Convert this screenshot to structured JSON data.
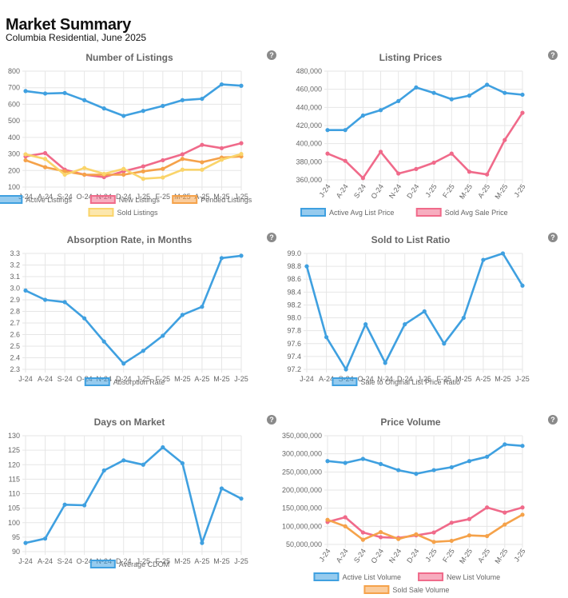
{
  "header": {
    "title": "Market Summary",
    "subtitle": "Columbia Residential, June 2025"
  },
  "help_icon": "?",
  "colors": {
    "blue": "#3fa0e0",
    "pink": "#f06a8a",
    "orange": "#f5a24a",
    "yellow": "#fad46a"
  },
  "chart_data": [
    {
      "type": "line",
      "title": "Number of Listings",
      "categories": [
        "J-24",
        "A-24",
        "S-24",
        "O-24",
        "N-24",
        "D-24",
        "J-25",
        "F-25",
        "M-25",
        "A-25",
        "M-25",
        "J-25"
      ],
      "ylim": [
        100,
        800
      ],
      "yticks": [
        "100",
        "200",
        "300",
        "400",
        "500",
        "600",
        "700",
        "800"
      ],
      "legend_rows": [
        [
          0,
          1,
          2
        ],
        [
          3
        ]
      ],
      "series": [
        {
          "name": "Active Listings",
          "color": "#3fa0e0",
          "values": [
            680,
            665,
            668,
            625,
            575,
            530,
            560,
            590,
            625,
            633,
            720,
            712
          ]
        },
        {
          "name": "New Listings",
          "color": "#f06a8a",
          "values": [
            285,
            305,
            205,
            175,
            160,
            195,
            225,
            262,
            298,
            355,
            335,
            365
          ]
        },
        {
          "name": "Pended Listings",
          "color": "#f5a24a",
          "values": [
            262,
            220,
            195,
            175,
            175,
            175,
            195,
            210,
            270,
            250,
            278,
            285
          ]
        },
        {
          "name": "Sold Listings",
          "color": "#fad46a",
          "values": [
            298,
            270,
            175,
            215,
            180,
            210,
            150,
            158,
            205,
            205,
            265,
            300
          ]
        }
      ]
    },
    {
      "type": "line",
      "title": "Listing Prices",
      "categories": [
        "J-24",
        "A-24",
        "S-24",
        "O-24",
        "N-24",
        "D-24",
        "J-25",
        "F-25",
        "M-25",
        "A-25",
        "M-25",
        "J-25"
      ],
      "ylim": [
        360000,
        480000
      ],
      "yticks": [
        "360,000",
        "380,000",
        "400,000",
        "420,000",
        "440,000",
        "460,000",
        "480,000"
      ],
      "rotate_x": true,
      "legend_rows": [
        [
          0,
          1
        ]
      ],
      "series": [
        {
          "name": "Active Avg List Price",
          "color": "#3fa0e0",
          "values": [
            415000,
            415000,
            431000,
            437000,
            447000,
            462000,
            456000,
            449000,
            453000,
            465000,
            456000,
            454000
          ]
        },
        {
          "name": "Sold Avg Sale Price",
          "color": "#f06a8a",
          "values": [
            389000,
            381000,
            362000,
            391000,
            367000,
            372000,
            379000,
            389000,
            369000,
            366000,
            404000,
            434000
          ]
        }
      ]
    },
    {
      "type": "line",
      "title": "Absorption Rate, in Months",
      "categories": [
        "J-24",
        "A-24",
        "S-24",
        "O-24",
        "N-24",
        "D-24",
        "J-25",
        "F-25",
        "M-25",
        "A-25",
        "M-25",
        "J-25"
      ],
      "ylim": [
        2.3,
        3.3
      ],
      "yticks": [
        "2.3",
        "2.4",
        "2.5",
        "2.6",
        "2.7",
        "2.8",
        "2.9",
        "3.0",
        "3.1",
        "3.2",
        "3.3"
      ],
      "legend_rows": [
        [
          0
        ]
      ],
      "series": [
        {
          "name": "Absorption Rate",
          "color": "#3fa0e0",
          "values": [
            2.98,
            2.9,
            2.88,
            2.74,
            2.54,
            2.35,
            2.46,
            2.59,
            2.77,
            2.84,
            3.26,
            3.28
          ]
        }
      ]
    },
    {
      "type": "line",
      "title": "Sold to List Ratio",
      "categories": [
        "J-24",
        "A-24",
        "S-24",
        "O-24",
        "N-24",
        "D-24",
        "J-25",
        "F-25",
        "M-25",
        "A-25",
        "M-25",
        "J-25"
      ],
      "ylim": [
        97.2,
        99.0
      ],
      "yticks": [
        "97.2",
        "97.4",
        "97.6",
        "97.8",
        "98.0",
        "98.2",
        "98.4",
        "98.6",
        "98.8",
        "99.0"
      ],
      "legend_rows": [
        [
          0
        ]
      ],
      "series": [
        {
          "name": "Sale to Original List Price Ratio",
          "color": "#3fa0e0",
          "values": [
            98.8,
            97.7,
            97.2,
            97.9,
            97.3,
            97.9,
            98.1,
            97.6,
            98.0,
            98.9,
            99.0,
            98.5
          ]
        }
      ]
    },
    {
      "type": "line",
      "title": "Days on Market",
      "categories": [
        "J-24",
        "A-24",
        "S-24",
        "O-24",
        "N-24",
        "D-24",
        "J-25",
        "F-25",
        "M-25",
        "A-25",
        "M-25",
        "J-25"
      ],
      "ylim": [
        90,
        130
      ],
      "yticks": [
        "90",
        "95",
        "100",
        "105",
        "110",
        "115",
        "120",
        "125",
        "130"
      ],
      "legend_rows": [
        [
          0
        ]
      ],
      "series": [
        {
          "name": "Average CDOM",
          "color": "#3fa0e0",
          "values": [
            93,
            94.5,
            106.2,
            106,
            118,
            121.5,
            120,
            126,
            120.5,
            93,
            111.8,
            108.3
          ]
        }
      ]
    },
    {
      "type": "line",
      "title": "Price Volume",
      "categories": [
        "J-24",
        "A-24",
        "S-24",
        "O-24",
        "N-24",
        "D-24",
        "J-25",
        "F-25",
        "M-25",
        "A-25",
        "M-25",
        "J-25"
      ],
      "ylim": [
        50000000,
        350000000
      ],
      "yticks": [
        "50,000,000",
        "100,000,000",
        "150,000,000",
        "200,000,000",
        "250,000,000",
        "300,000,000",
        "350,000,000"
      ],
      "rotate_x": true,
      "legend_rows": [
        [
          0,
          1
        ],
        [
          2
        ]
      ],
      "series": [
        {
          "name": "Active List Volume",
          "color": "#3fa0e0",
          "values": [
            280000000,
            275000000,
            286000000,
            272000000,
            255000000,
            245000000,
            255000000,
            263000000,
            280000000,
            292000000,
            326000000,
            322000000
          ]
        },
        {
          "name": "New List Volume",
          "color": "#f06a8a",
          "values": [
            112000000,
            125000000,
            83000000,
            70000000,
            68000000,
            75000000,
            83000000,
            110000000,
            120000000,
            152000000,
            138000000,
            152000000
          ]
        },
        {
          "name": "Sold Sale Volume",
          "color": "#f5a24a",
          "values": [
            118000000,
            100000000,
            63000000,
            84000000,
            65000000,
            78000000,
            57000000,
            60000000,
            75000000,
            73000000,
            105000000,
            132000000
          ]
        }
      ]
    }
  ]
}
